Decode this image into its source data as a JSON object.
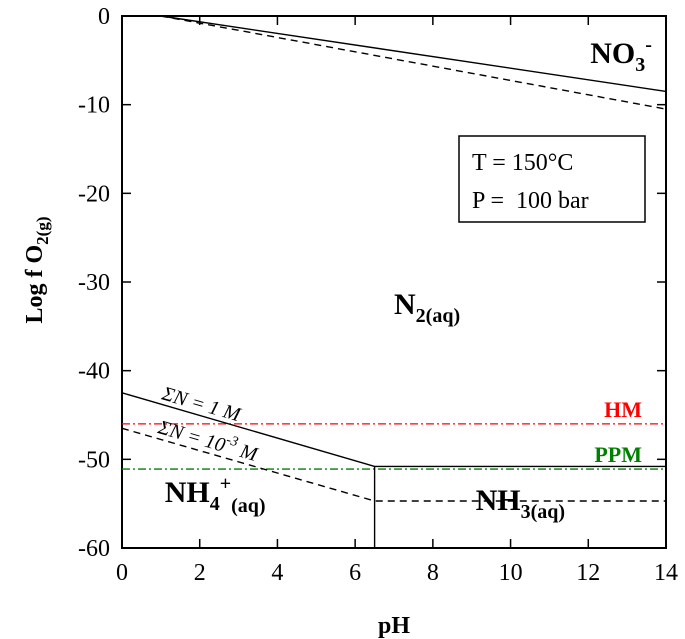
{
  "chart_data": {
    "type": "line",
    "xlabel": "pH",
    "ylabel_main": "Log f O",
    "ylabel_sub": "2(g)",
    "xlim": [
      0,
      14
    ],
    "ylim": [
      -60,
      0
    ],
    "xticks": [
      0,
      2,
      4,
      6,
      8,
      10,
      12,
      14
    ],
    "xtick_labels": [
      "0",
      "2",
      "4",
      "6",
      "8",
      "10",
      "12",
      "14"
    ],
    "yticks": [
      0,
      -10,
      -20,
      -30,
      -40,
      -50,
      -60
    ],
    "ytick_labels": [
      "0",
      "-10",
      "-20",
      "-30",
      "-40",
      "-50",
      "-60"
    ],
    "grid": false,
    "conditions": {
      "temperature": "T = 150°C",
      "pressure": "P =  100 bar"
    },
    "boundaries": [
      {
        "style": "solid",
        "x": [
          1.0,
          14.0
        ],
        "y": [
          0.0,
          -8.5
        ]
      },
      {
        "style": "dashed",
        "x": [
          1.0,
          14.0
        ],
        "y": [
          0.0,
          -10.5
        ]
      },
      {
        "style": "solid",
        "x": [
          0.0,
          6.5,
          14.0
        ],
        "y": [
          -42.5,
          -50.8,
          -50.8
        ]
      },
      {
        "style": "dashed",
        "x": [
          0.0,
          6.5,
          14.0
        ],
        "y": [
          -46.5,
          -54.7,
          -54.7
        ]
      },
      {
        "style": "solid",
        "x": [
          6.5,
          6.5
        ],
        "y": [
          -50.8,
          -60.0
        ]
      }
    ],
    "reference_lines": [
      {
        "name": "HM",
        "y": -46.0,
        "color": "#ff0000"
      },
      {
        "name": "PPM",
        "y": -51.1,
        "color": "#008000"
      }
    ],
    "boundary_labels": [
      {
        "text": "ΣN = 1 M",
        "x": 1.0,
        "y": -43.2
      },
      {
        "text": "ΣN = 10-3 M",
        "x": 0.9,
        "y": -47.0
      }
    ],
    "regions": [
      {
        "main": "NO",
        "sub": "3",
        "sup": "-",
        "x": 12.05,
        "y": -5.3
      },
      {
        "main": "N",
        "sub": "2(aq)",
        "sup": "",
        "x": 7.0,
        "y": -33.6
      },
      {
        "main": "NH",
        "sub": "4",
        "sup": "+",
        "after": "(aq)",
        "x": 1.1,
        "y": -54.8
      },
      {
        "main": "NH",
        "sub": "3(aq)",
        "sup": "",
        "x": 9.1,
        "y": -55.7
      }
    ]
  }
}
